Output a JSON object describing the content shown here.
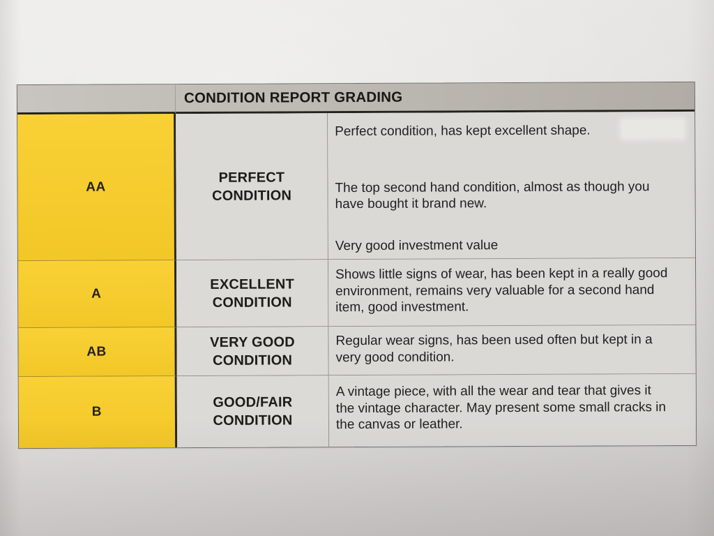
{
  "document": {
    "type": "photographed printed table",
    "table": {
      "title": "CONDITION REPORT GRADING",
      "rows": [
        {
          "grade": "AA",
          "label": "PERFECT CONDITION",
          "label_lines": [
            "PERFECT",
            "CONDITION"
          ],
          "description": [
            "Perfect condition, has kept excellent shape.",
            "The top second hand condition, almost as though you have bought it brand new.",
            "Very good investment value"
          ]
        },
        {
          "grade": "A",
          "label": "EXCELLENT CONDITION",
          "label_lines": [
            "EXCELLENT",
            "CONDITION"
          ],
          "description": [
            "Shows little signs of wear, has been kept in a really good environment, remains very valuable for a second hand item, good investment."
          ]
        },
        {
          "grade": "AB",
          "label": "VERY GOOD CONDITION",
          "label_lines": [
            "VERY GOOD",
            "CONDITION"
          ],
          "description": [
            "Regular wear signs, has been used often but kept in a very good condition."
          ]
        },
        {
          "grade": "B",
          "label": "GOOD/FAIR CONDITION",
          "label_lines": [
            "GOOD/FAIR",
            "CONDITION"
          ],
          "description": [
            "A vintage piece, with all the wear and tear that gives it the vintage character. May present some small cracks in the canvas or leather."
          ]
        }
      ]
    },
    "colors": {
      "grade_column_yellow": "#f5cc2d",
      "header_gray": "#bcb8b1",
      "cell_gray": "#dcdad7",
      "paper_gray": "#e4e2e0",
      "text_black": "#201f1d"
    }
  }
}
